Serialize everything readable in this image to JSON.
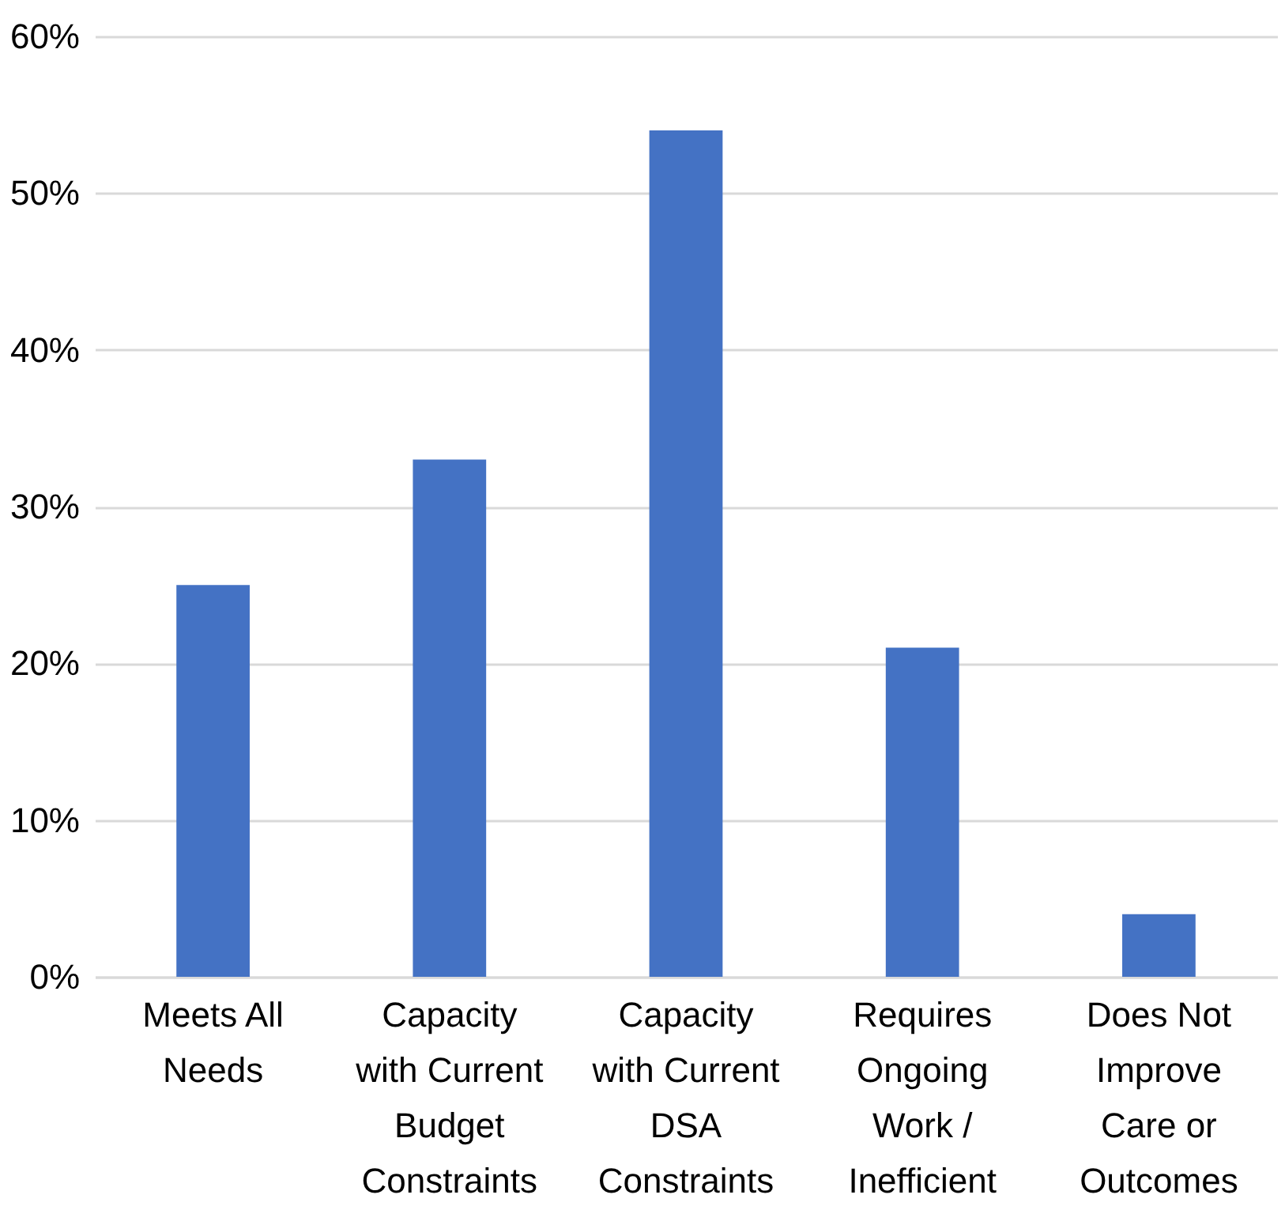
{
  "chart_data": {
    "type": "bar",
    "categories": [
      "Meets All Needs",
      "Capacity with Current Budget Constraints",
      "Capacity with Current DSA Constraints",
      "Requires Ongoing Work / Inefficient",
      "Does Not Improve Care or Outcomes"
    ],
    "values": [
      25,
      33,
      54,
      21,
      4
    ],
    "color": "#4472c4",
    "ylim": [
      0,
      60
    ],
    "yticks": [
      {
        "value": 0,
        "label": "0%"
      },
      {
        "value": 10,
        "label": "10%"
      },
      {
        "value": 20,
        "label": "20%"
      },
      {
        "value": 30,
        "label": "30%"
      },
      {
        "value": 40,
        "label": "40%"
      },
      {
        "value": 50,
        "label": "50%"
      },
      {
        "value": 60,
        "label": "60%"
      }
    ],
    "grid": "y"
  }
}
